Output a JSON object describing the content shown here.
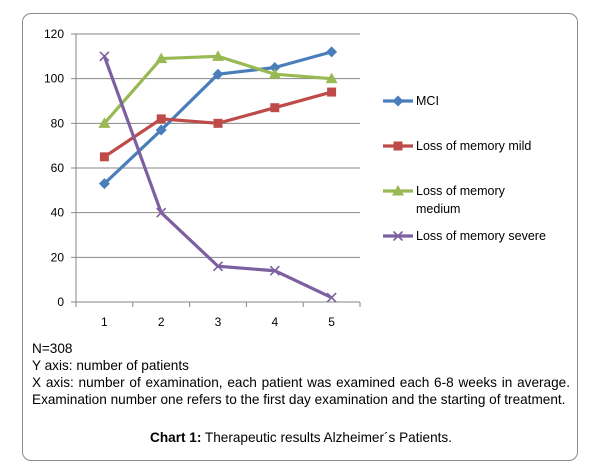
{
  "chart_data": {
    "type": "line",
    "x": [
      1,
      2,
      3,
      4,
      5
    ],
    "ylim": [
      0,
      120
    ],
    "yticks": [
      0,
      20,
      40,
      60,
      80,
      100,
      120
    ],
    "grid": "horizontal",
    "legend_position": "right",
    "series": [
      {
        "name": "MCI",
        "values": [
          53,
          77,
          102,
          105,
          112
        ],
        "color": "#4a7ebb",
        "marker": "diamond"
      },
      {
        "name": "Loss of memory mild",
        "values": [
          65,
          82,
          80,
          87,
          94
        ],
        "color": "#be4b48",
        "marker": "square"
      },
      {
        "name": "Loss of memory medium",
        "values": [
          80,
          109,
          110,
          102,
          100
        ],
        "color": "#98b954",
        "marker": "triangle"
      },
      {
        "name": "Loss of memory severe",
        "values": [
          110,
          40,
          16,
          14,
          2
        ],
        "color": "#7d60a0",
        "marker": "x"
      }
    ]
  },
  "legend_lines": [
    [
      "MCI"
    ],
    [
      "Loss of memory mild"
    ],
    [
      "Loss of memory",
      "medium"
    ],
    [
      "Loss of memory severe"
    ]
  ],
  "notes": {
    "n": "N=308",
    "y_axis": "Y axis: number of patients",
    "x_axis": "X axis: number of examination, each patient was examined each 6-8 weeks in average. Examination number one refers to the first day examination and the starting of treatment."
  },
  "caption": {
    "label": "Chart 1:",
    "text": " Therapeutic results Alzheimer´s Patients."
  }
}
